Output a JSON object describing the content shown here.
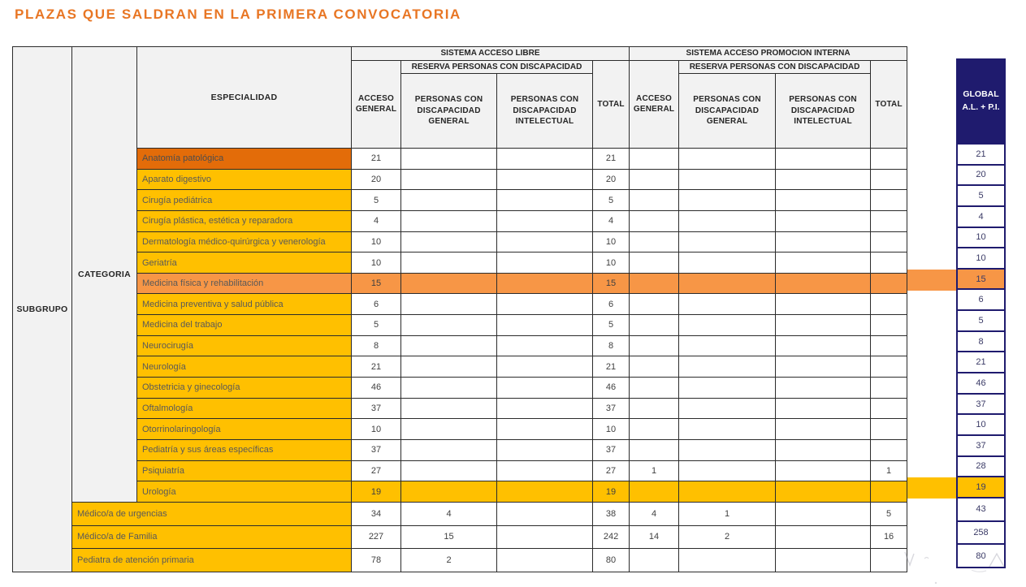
{
  "title": "PLAZAS QUE SALDRAN EN LA PRIMERA CONVOCATORIA",
  "colors": {
    "title_orange": "#E87624",
    "row_yellow": "#FFC000",
    "row_orange_light": "#F79646",
    "row_orange_dark": "#E36C09",
    "global_navy": "#1F1B6E",
    "header_gray": "#F2F2F2"
  },
  "table": {
    "corner": {
      "subgrupo": "SUBGRUPO",
      "categoria": "CATEGORIA",
      "especialidad": "ESPECIALIDAD"
    },
    "groups": {
      "libre": "SISTEMA ACCESO LIBRE",
      "interna": "SISTEMA ACCESO PROMOCION INTERNA",
      "reserva": "RESERVA PERSONAS CON DISCAPACIDAD"
    },
    "columns": {
      "acceso_general": "ACCESO GENERAL",
      "discapacidad_general": "PERSONAS CON DISCAPACIDAD GENERAL",
      "discapacidad_intelectual": "PERSONAS CON DISCAPACIDAD INTELECTUAL",
      "total": "TOTAL"
    },
    "global_header": "GLOBAL A.L. + P.I.",
    "rows": [
      {
        "name": "Anatomía patológica",
        "level": "especialidad",
        "highlight": "header-darkorange",
        "al": [
          "21",
          "",
          "",
          "21"
        ],
        "pi": [
          "",
          "",
          "",
          ""
        ],
        "global": "21"
      },
      {
        "name": "Aparato digestivo",
        "level": "especialidad",
        "highlight": "none",
        "al": [
          "20",
          "",
          "",
          "20"
        ],
        "pi": [
          "",
          "",
          "",
          ""
        ],
        "global": "20"
      },
      {
        "name": "Cirugía pediátrica",
        "level": "especialidad",
        "highlight": "none",
        "al": [
          "5",
          "",
          "",
          "5"
        ],
        "pi": [
          "",
          "",
          "",
          ""
        ],
        "global": "5"
      },
      {
        "name": "Cirugía plástica, estética y reparadora",
        "level": "especialidad",
        "highlight": "none",
        "al": [
          "4",
          "",
          "",
          "4"
        ],
        "pi": [
          "",
          "",
          "",
          ""
        ],
        "global": "4"
      },
      {
        "name": "Dermatología médico-quirúrgica y venerología",
        "level": "especialidad",
        "highlight": "none",
        "al": [
          "10",
          "",
          "",
          "10"
        ],
        "pi": [
          "",
          "",
          "",
          ""
        ],
        "global": "10"
      },
      {
        "name": "Geriatría",
        "level": "especialidad",
        "highlight": "none",
        "al": [
          "10",
          "",
          "",
          "10"
        ],
        "pi": [
          "",
          "",
          "",
          ""
        ],
        "global": "10"
      },
      {
        "name": "Medicina física y rehabilitación",
        "level": "especialidad",
        "highlight": "row-orange",
        "al": [
          "15",
          "",
          "",
          "15"
        ],
        "pi": [
          "",
          "",
          "",
          ""
        ],
        "global": "15"
      },
      {
        "name": "Medicina preventiva y salud pública",
        "level": "especialidad",
        "highlight": "none",
        "al": [
          "6",
          "",
          "",
          "6"
        ],
        "pi": [
          "",
          "",
          "",
          ""
        ],
        "global": "6"
      },
      {
        "name": "Medicina del trabajo",
        "level": "especialidad",
        "highlight": "none",
        "al": [
          "5",
          "",
          "",
          "5"
        ],
        "pi": [
          "",
          "",
          "",
          ""
        ],
        "global": "5"
      },
      {
        "name": "Neurocirugía",
        "level": "especialidad",
        "highlight": "none",
        "al": [
          "8",
          "",
          "",
          "8"
        ],
        "pi": [
          "",
          "",
          "",
          ""
        ],
        "global": "8"
      },
      {
        "name": "Neurología",
        "level": "especialidad",
        "highlight": "none",
        "al": [
          "21",
          "",
          "",
          "21"
        ],
        "pi": [
          "",
          "",
          "",
          ""
        ],
        "global": "21"
      },
      {
        "name": "Obstetricia y ginecología",
        "level": "especialidad",
        "highlight": "none",
        "al": [
          "46",
          "",
          "",
          "46"
        ],
        "pi": [
          "",
          "",
          "",
          ""
        ],
        "global": "46"
      },
      {
        "name": "Oftalmología",
        "level": "especialidad",
        "highlight": "none",
        "al": [
          "37",
          "",
          "",
          "37"
        ],
        "pi": [
          "",
          "",
          "",
          ""
        ],
        "global": "37"
      },
      {
        "name": "Otorrinolaringología",
        "level": "especialidad",
        "highlight": "none",
        "al": [
          "10",
          "",
          "",
          "10"
        ],
        "pi": [
          "",
          "",
          "",
          ""
        ],
        "global": "10"
      },
      {
        "name": "Pediatría y sus áreas específicas",
        "level": "especialidad",
        "highlight": "none",
        "al": [
          "37",
          "",
          "",
          "37"
        ],
        "pi": [
          "",
          "",
          "",
          ""
        ],
        "global": "37"
      },
      {
        "name": "Psiquiatría",
        "level": "especialidad",
        "highlight": "none",
        "al": [
          "27",
          "",
          "",
          "27"
        ],
        "pi": [
          "1",
          "",
          "",
          "1"
        ],
        "global": "28"
      },
      {
        "name": "Urología",
        "level": "especialidad",
        "highlight": "row-yellow",
        "al": [
          "19",
          "",
          "",
          "19"
        ],
        "pi": [
          "",
          "",
          "",
          ""
        ],
        "global": "19"
      },
      {
        "name": "Médico/a de urgencias",
        "level": "categoria",
        "highlight": "none",
        "al": [
          "34",
          "4",
          "",
          "38"
        ],
        "pi": [
          "4",
          "1",
          "",
          "5"
        ],
        "global": "43"
      },
      {
        "name": "Médico/a de Familia",
        "level": "categoria",
        "highlight": "none",
        "al": [
          "227",
          "15",
          "",
          "242"
        ],
        "pi": [
          "14",
          "2",
          "",
          "16"
        ],
        "global": "258"
      },
      {
        "name": "Pediatra de atención primaria",
        "level": "categoria",
        "highlight": "none",
        "al": [
          "78",
          "2",
          "",
          "80"
        ],
        "pi": [
          "",
          "",
          "",
          ""
        ],
        "global": "80"
      }
    ]
  }
}
